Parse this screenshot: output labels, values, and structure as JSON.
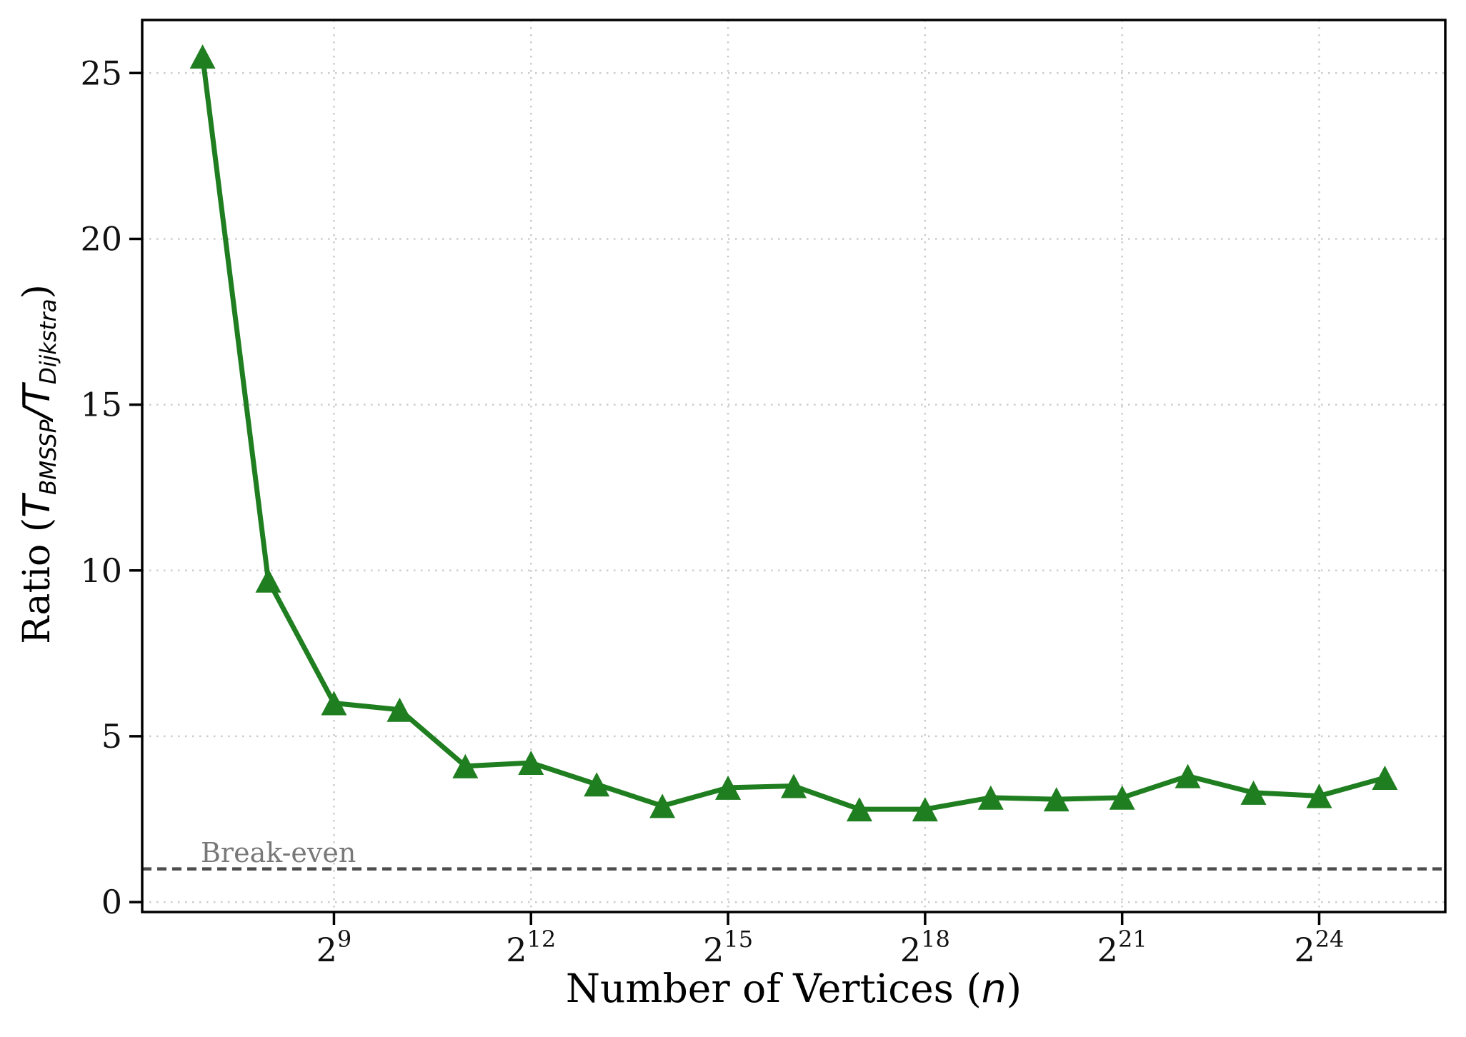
{
  "y_axis": {
    "label": {
      "pre": "Ratio (",
      "T1": "T",
      "sub1": "BMSSP",
      "slash": "/",
      "T2": "T",
      "sub2": "Dijkstra",
      "post": ")"
    },
    "tick_labels": [
      "0",
      "5",
      "10",
      "15",
      "20",
      "25"
    ]
  },
  "x_axis": {
    "label": {
      "pre": "Number of Vertices (",
      "var": "n",
      "post": ")"
    },
    "tick_base": "2",
    "tick_exponents": [
      "9",
      "12",
      "15",
      "18",
      "21",
      "24"
    ]
  },
  "annotations": {
    "break_even_label": "Break-even"
  },
  "colors": {
    "background": "#ffffff",
    "axis": "#000000",
    "grid": "#cccccc",
    "tick_label": "#111111",
    "series_green": "#1f7e1f",
    "break_even_line": "#4d4d4d",
    "break_even_label": "#787878"
  },
  "chart_data": {
    "type": "line",
    "title": "",
    "xlabel": "Number of Vertices (n)",
    "ylabel": "Ratio (T_BMSSP / T_Dijkstra)",
    "x_scale": "log2",
    "x_exponents": [
      7,
      8,
      9,
      10,
      11,
      12,
      13,
      14,
      15,
      16,
      17,
      18,
      19,
      20,
      21,
      22,
      23,
      24,
      25
    ],
    "series": [
      {
        "name": "T_BMSSP / T_Dijkstra ratio",
        "color": "#1f7e1f",
        "marker": "triangle_up",
        "values": [
          25.5,
          9.7,
          6.0,
          5.8,
          4.1,
          4.2,
          3.55,
          2.9,
          3.45,
          3.5,
          2.8,
          2.8,
          3.15,
          3.1,
          3.15,
          3.8,
          3.3,
          3.2,
          3.75
        ]
      }
    ],
    "break_even": {
      "value": 1.0,
      "label": "Break-even"
    },
    "xlim_exp": [
      6.08,
      25.92
    ],
    "ylim": [
      -0.3,
      26.6
    ],
    "x_tick_exponents": [
      9,
      12,
      15,
      18,
      21,
      24
    ],
    "y_tick_values": [
      0,
      5,
      10,
      15,
      20,
      25
    ],
    "grid": "dotted",
    "legend": "none"
  }
}
